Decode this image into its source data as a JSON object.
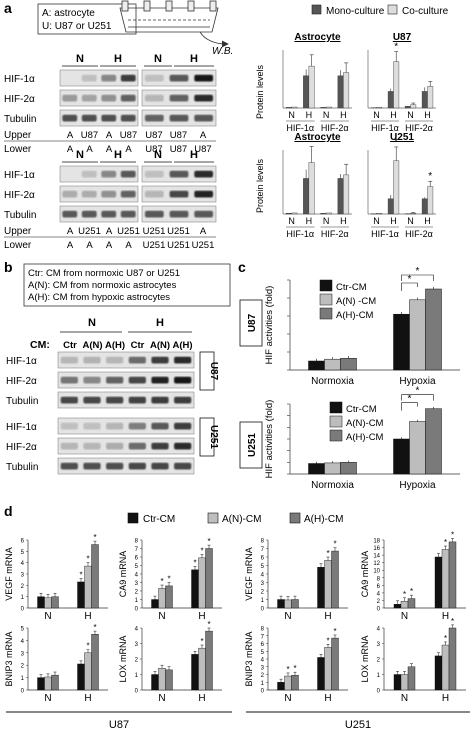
{
  "panel_a": {
    "letter": "a",
    "legend_lines": [
      "A: astrocyte",
      "U: U87 or U251"
    ],
    "wb_label": "W.B.",
    "bands": [
      "HIF-1α",
      "HIF-2α",
      "Tubulin"
    ],
    "upper_label": "Upper",
    "lower_label": "Lower",
    "blot_groups": [
      {
        "left": {
          "cond": [
            "N",
            "H"
          ],
          "upper": [
            "A",
            "U87",
            "A",
            "U87"
          ],
          "lower": [
            "A",
            "A",
            "A",
            "A"
          ]
        },
        "right": {
          "cond": [
            "N",
            "H"
          ],
          "upper": [
            "U87",
            "U87",
            "A"
          ],
          "lower": [
            "U87",
            "U87",
            "U87"
          ]
        }
      },
      {
        "left": {
          "cond": [
            "N",
            "H"
          ],
          "upper": [
            "A",
            "U251",
            "A",
            "U251"
          ],
          "lower": [
            "A",
            "A",
            "A",
            "A"
          ]
        },
        "right": {
          "cond": [
            "N",
            "H"
          ],
          "upper": [
            "U251",
            "U251",
            "A"
          ],
          "lower": [
            "U251",
            "U251",
            "U251"
          ]
        }
      }
    ],
    "legend": {
      "mono": "Mono-culture",
      "co": "Co-culture"
    },
    "ylabel": "Protein levels"
  },
  "panel_b": {
    "letter": "b",
    "legend_lines": [
      "Ctr: CM from normoxic U87 or U251",
      "A(N): CM from normoxic astrocytes",
      "A(H): CM from hypoxic astrocytes"
    ],
    "cm_label": "CM:",
    "cond": [
      "N",
      "H"
    ],
    "lanes": [
      "Ctr",
      "A(N)",
      "A(H)",
      "Ctr",
      "A(N)",
      "A(H)"
    ],
    "bands": [
      "HIF-1α",
      "HIF-2α",
      "Tubulin"
    ],
    "cells": [
      "U87",
      "U251"
    ]
  },
  "panel_c": {
    "letter": "c",
    "ylabel": "HIF activities (fold)",
    "legend": [
      "Ctr-CM",
      "A(N) -CM",
      "A(H)-CM"
    ],
    "legend2": [
      "Ctr-CM",
      "A(N)-CM",
      "A(H)-CM"
    ],
    "cells": [
      "U87",
      "U251"
    ]
  },
  "panel_d": {
    "letter": "d",
    "legend": [
      "Ctr-CM",
      "A(N)-CM",
      "A(H)-CM"
    ],
    "groups": [
      "U87",
      "U251"
    ]
  },
  "colors": {
    "dark": "#555555",
    "light": "#dddddd",
    "black": "#111111",
    "mid": "#bdbdbd",
    "gray": "#7a7a7a"
  },
  "chart_data": [
    {
      "type": "bar",
      "title": "Astrocyte",
      "categories": [
        "N",
        "H",
        "N",
        "H"
      ],
      "groups": [
        "HIF-1α",
        "HIF-2α"
      ],
      "ylabel": "Protein levels",
      "series": [
        {
          "name": "Mono-culture",
          "values": [
            0.02,
            1.0,
            0.02,
            1.0
          ]
        },
        {
          "name": "Co-culture",
          "values": [
            0.03,
            1.3,
            0.03,
            1.1
          ]
        }
      ]
    },
    {
      "type": "bar",
      "title": "U87",
      "categories": [
        "N",
        "H",
        "N",
        "H"
      ],
      "groups": [
        "HIF-1α",
        "HIF-2α"
      ],
      "series": [
        {
          "name": "Mono-culture",
          "values": [
            0.02,
            1.0,
            0.1,
            1.0
          ]
        },
        {
          "name": "Co-culture",
          "values": [
            0.05,
            2.8,
            0.2,
            1.3
          ]
        }
      ]
    },
    {
      "type": "bar",
      "title": "Astrocyte",
      "categories": [
        "N",
        "H",
        "N",
        "H"
      ],
      "groups": [
        "HIF-1α",
        "HIF-2α"
      ],
      "ylabel": "Protein levels",
      "series": [
        {
          "name": "Mono-culture",
          "values": [
            0.02,
            1.0,
            0.02,
            1.0
          ]
        },
        {
          "name": "Co-culture",
          "values": [
            0.03,
            1.45,
            0.03,
            1.1
          ]
        }
      ]
    },
    {
      "type": "bar",
      "title": "U251",
      "categories": [
        "N",
        "H",
        "N",
        "H"
      ],
      "groups": [
        "HIF-1α",
        "HIF-2α"
      ],
      "series": [
        {
          "name": "Mono-culture",
          "values": [
            0.02,
            1.0,
            0.02,
            1.0
          ]
        },
        {
          "name": "Co-culture",
          "values": [
            0.05,
            3.5,
            0.05,
            1.8
          ]
        }
      ]
    },
    {
      "type": "bar",
      "title": "",
      "categories": [
        "Normoxia",
        "Hypoxia"
      ],
      "ylabel": "HIF activities (fold)",
      "ylim": [
        0,
        10
      ],
      "series": [
        {
          "name": "Ctr-CM",
          "values": [
            1.0,
            6.2
          ]
        },
        {
          "name": "A(N) -CM",
          "values": [
            1.2,
            7.8
          ]
        },
        {
          "name": "A(H)-CM",
          "values": [
            1.3,
            9.0
          ]
        }
      ]
    },
    {
      "type": "bar",
      "title": "",
      "categories": [
        "Normoxia",
        "Hypoxia"
      ],
      "ylabel": "HIF activities (fold)",
      "ylim": [
        0,
        6
      ],
      "series": [
        {
          "name": "Ctr-CM",
          "values": [
            0.9,
            3.0
          ]
        },
        {
          "name": "A(N)-CM",
          "values": [
            0.95,
            4.5
          ]
        },
        {
          "name": "A(H)-CM",
          "values": [
            1.0,
            5.6
          ]
        }
      ]
    },
    {
      "type": "bar",
      "title": "",
      "ylabel": "VEGF mRNA",
      "categories": [
        "N",
        "H"
      ],
      "ylim": [
        0,
        6
      ],
      "yticks": [
        0,
        1,
        2,
        3,
        4,
        5,
        6
      ],
      "series": [
        {
          "name": "Ctr-CM",
          "values": [
            1.0,
            2.3
          ]
        },
        {
          "name": "A(N)-CM",
          "values": [
            0.9,
            3.7
          ]
        },
        {
          "name": "A(H)-CM",
          "values": [
            1.0,
            5.6
          ]
        }
      ]
    },
    {
      "type": "bar",
      "title": "",
      "ylabel": "CA9 mRNA",
      "categories": [
        "N",
        "H"
      ],
      "ylim": [
        0,
        8
      ],
      "yticks": [
        0,
        1,
        2,
        3,
        4,
        5,
        6,
        7,
        8
      ],
      "series": [
        {
          "name": "Ctr-CM",
          "values": [
            1.0,
            4.5
          ]
        },
        {
          "name": "A(N)-CM",
          "values": [
            2.3,
            5.9
          ]
        },
        {
          "name": "A(H)-CM",
          "values": [
            2.6,
            7.0
          ]
        }
      ]
    },
    {
      "type": "bar",
      "title": "",
      "ylabel": "VEGF mRNA",
      "categories": [
        "N",
        "H"
      ],
      "ylim": [
        0,
        8
      ],
      "yticks": [
        0,
        1,
        2,
        3,
        4,
        5,
        6,
        7,
        8
      ],
      "series": [
        {
          "name": "Ctr-CM",
          "values": [
            1.0,
            4.8
          ]
        },
        {
          "name": "A(N)-CM",
          "values": [
            0.95,
            5.6
          ]
        },
        {
          "name": "A(H)-CM",
          "values": [
            1.0,
            6.7
          ]
        }
      ]
    },
    {
      "type": "bar",
      "title": "",
      "ylabel": "CA9 mRNA",
      "categories": [
        "N",
        "H"
      ],
      "ylim": [
        0,
        18
      ],
      "yticks": [
        0,
        2,
        4,
        6,
        8,
        10,
        12,
        14,
        16,
        18
      ],
      "series": [
        {
          "name": "Ctr-CM",
          "values": [
            1.0,
            13.5
          ]
        },
        {
          "name": "A(N)-CM",
          "values": [
            1.8,
            15.5
          ]
        },
        {
          "name": "A(H)-CM",
          "values": [
            2.5,
            17.5
          ]
        }
      ]
    },
    {
      "type": "bar",
      "title": "",
      "ylabel": "BNIP3 mRNA",
      "categories": [
        "N",
        "H"
      ],
      "ylim": [
        0,
        5
      ],
      "yticks": [
        0,
        1,
        2,
        3,
        4,
        5
      ],
      "series": [
        {
          "name": "Ctr-CM",
          "values": [
            1.0,
            2.1
          ]
        },
        {
          "name": "A(N)-CM",
          "values": [
            1.05,
            3.0
          ]
        },
        {
          "name": "A(H)-CM",
          "values": [
            1.2,
            4.5
          ]
        }
      ]
    },
    {
      "type": "bar",
      "title": "",
      "ylabel": "LOX mRNA",
      "categories": [
        "N",
        "H"
      ],
      "ylim": [
        0,
        4
      ],
      "yticks": [
        0,
        1,
        2,
        3,
        4
      ],
      "series": [
        {
          "name": "Ctr-CM",
          "values": [
            1.0,
            2.3
          ]
        },
        {
          "name": "A(N)-CM",
          "values": [
            1.4,
            2.7
          ]
        },
        {
          "name": "A(H)-CM",
          "values": [
            1.3,
            3.8
          ]
        }
      ]
    },
    {
      "type": "bar",
      "title": "",
      "ylabel": "BNIP3 mRNA",
      "categories": [
        "N",
        "H"
      ],
      "ylim": [
        0,
        8
      ],
      "yticks": [
        0,
        1,
        2,
        3,
        4,
        5,
        6,
        7,
        8
      ],
      "series": [
        {
          "name": "Ctr-CM",
          "values": [
            1.0,
            4.2
          ]
        },
        {
          "name": "A(N)-CM",
          "values": [
            1.8,
            5.5
          ]
        },
        {
          "name": "A(H)-CM",
          "values": [
            1.9,
            6.7
          ]
        }
      ]
    },
    {
      "type": "bar",
      "title": "",
      "ylabel": "LOX mRNA",
      "categories": [
        "N",
        "H"
      ],
      "ylim": [
        0,
        4
      ],
      "yticks": [
        0,
        1,
        2,
        3,
        4
      ],
      "series": [
        {
          "name": "Ctr-CM",
          "values": [
            1.0,
            2.2
          ]
        },
        {
          "name": "A(N)-CM",
          "values": [
            1.0,
            2.9
          ]
        },
        {
          "name": "A(H)-CM",
          "values": [
            1.5,
            4.0
          ]
        }
      ]
    }
  ]
}
